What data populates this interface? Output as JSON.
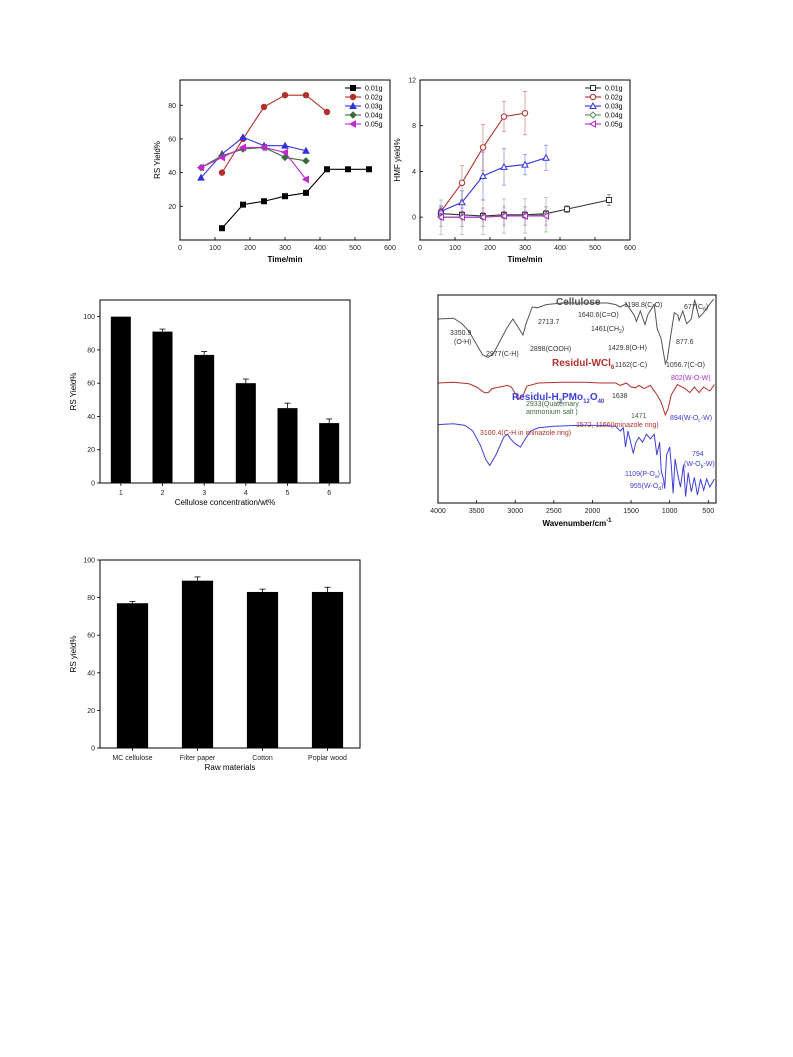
{
  "charts": [
    {
      "id": "rs-time",
      "type": "line",
      "xlabel": "Time/min",
      "ylabel": "RS Yield%",
      "xlim": [
        0,
        600
      ],
      "ylim": [
        0,
        95
      ],
      "xticks": [
        0,
        100,
        200,
        300,
        400,
        500,
        600
      ],
      "yticks": [
        20,
        40,
        60,
        80
      ],
      "legend": "top-right",
      "series": [
        {
          "name": "0.01g",
          "color": "#000000",
          "marker": "square-filled",
          "x": [
            120,
            180,
            240,
            300,
            360,
            420,
            480,
            540
          ],
          "y": [
            7,
            21,
            23,
            26,
            28,
            42,
            42,
            42
          ]
        },
        {
          "name": "0.02g",
          "color": "#b2302a",
          "marker": "circle-filled",
          "x": [
            120,
            180,
            240,
            300,
            360,
            420
          ],
          "y": [
            40,
            60,
            79,
            86,
            86,
            76
          ]
        },
        {
          "name": "0.03g",
          "color": "#3232d8",
          "marker": "triangle-filled",
          "x": [
            60,
            120,
            180,
            240,
            300,
            360
          ],
          "y": [
            37,
            51,
            61,
            56,
            56,
            53
          ]
        },
        {
          "name": "0.04g",
          "color": "#3b6b3b",
          "marker": "diamond-filled",
          "x": [
            60,
            120,
            180,
            240,
            300,
            360
          ],
          "y": [
            43,
            50,
            54,
            55,
            49,
            47
          ]
        },
        {
          "name": "0.05g",
          "color": "#c12ad0",
          "marker": "triangle-left-filled",
          "x": [
            60,
            120,
            180,
            240,
            300,
            360
          ],
          "y": [
            43,
            49,
            55,
            55,
            52,
            36
          ]
        }
      ]
    },
    {
      "id": "hmf-time",
      "type": "line",
      "xlabel": "Time/min",
      "ylabel": "HMF yield%",
      "xlim": [
        0,
        600
      ],
      "ylim": [
        -2,
        12
      ],
      "xticks": [
        0,
        100,
        200,
        300,
        400,
        500,
        600
      ],
      "yticks": [
        0,
        4,
        8,
        12
      ],
      "legend": "top-right",
      "series": [
        {
          "name": "0.01g",
          "color": "#333333",
          "marker": "square-open",
          "x": [
            60,
            120,
            180,
            240,
            300,
            360,
            420,
            540
          ],
          "y": [
            0.3,
            0.2,
            0.1,
            0.2,
            0.2,
            0.3,
            0.7,
            1.5
          ],
          "err": [
            0.3,
            0.3,
            0.3,
            0.3,
            0.3,
            0.3,
            0.3,
            0.5
          ]
        },
        {
          "name": "0.02g",
          "color": "#b2302a",
          "marker": "circle-open",
          "x": [
            60,
            120,
            180,
            240,
            300
          ],
          "y": [
            0.5,
            3.0,
            6.1,
            8.8,
            9.1
          ],
          "err": [
            0.5,
            1.5,
            2.0,
            1.3,
            1.9
          ]
        },
        {
          "name": "0.03g",
          "color": "#3232d8",
          "marker": "triangle-open",
          "x": [
            60,
            120,
            180,
            240,
            300,
            360
          ],
          "y": [
            0.5,
            1.3,
            3.6,
            4.4,
            4.6,
            5.2
          ],
          "err": [
            0.4,
            1.0,
            2.1,
            1.6,
            0.9,
            1.1
          ]
        },
        {
          "name": "0.04g",
          "color": "#5e8f5e",
          "marker": "diamond-open",
          "x": [
            60,
            120,
            180,
            240,
            300,
            360
          ],
          "y": [
            0.0,
            0.0,
            0.0,
            0.1,
            0.1,
            0.2
          ],
          "err": [
            1.5,
            1.5,
            1.5,
            1.5,
            1.5,
            1.5
          ]
        },
        {
          "name": "0.05g",
          "color": "#b12ec6",
          "marker": "triangle-left-open",
          "x": [
            60,
            120,
            180,
            240,
            300,
            360
          ],
          "y": [
            0.0,
            0.0,
            0.0,
            0.1,
            0.1,
            0.1
          ],
          "err": [
            0.8,
            0.8,
            0.8,
            0.8,
            0.8,
            0.8
          ]
        }
      ]
    },
    {
      "id": "rs-concentration",
      "type": "bar",
      "xlabel": "Cellulose concentration/wt%",
      "ylabel": "RS Yield%",
      "ylim": [
        0,
        110
      ],
      "yticks": [
        0,
        20,
        40,
        60,
        80,
        100
      ],
      "categories": [
        "1",
        "2",
        "3",
        "4",
        "5",
        "6"
      ],
      "values": [
        100,
        91,
        77,
        60,
        45,
        36
      ],
      "errors": [
        0,
        1.5,
        2,
        2.5,
        3,
        2.5
      ]
    },
    {
      "id": "ftir",
      "type": "line",
      "xlabel": "Wavenumber/cm",
      "xlabel_sup": "-1",
      "xlim": [
        4000,
        400
      ],
      "xticks": [
        4000,
        3500,
        3000,
        2500,
        2000,
        1500,
        1000,
        500
      ],
      "series": [
        {
          "name": "Cellulose",
          "color": "#555555",
          "points": [
            [
              4000,
              0.3
            ],
            [
              3800,
              0.29
            ],
            [
              3700,
              0.35
            ],
            [
              3600,
              0.45
            ],
            [
              3500,
              0.62
            ],
            [
              3420,
              0.75
            ],
            [
              3350,
              0.78
            ],
            [
              3280,
              0.73
            ],
            [
              3200,
              0.58
            ],
            [
              3100,
              0.4
            ],
            [
              3030,
              0.3
            ],
            [
              2977,
              0.38
            ],
            [
              2900,
              0.5
            ],
            [
              2860,
              0.36
            ],
            [
              2780,
              0.15
            ],
            [
              2713,
              0.16
            ],
            [
              2600,
              0.12
            ],
            [
              2400,
              0.1
            ],
            [
              2200,
              0.1
            ],
            [
              2000,
              0.1
            ],
            [
              1800,
              0.1
            ],
            [
              1700,
              0.12
            ],
            [
              1640,
              0.15
            ],
            [
              1560,
              0.11
            ],
            [
              1461,
              0.25
            ],
            [
              1430,
              0.33
            ],
            [
              1380,
              0.2
            ],
            [
              1320,
              0.37
            ],
            [
              1280,
              0.24
            ],
            [
              1200,
              0.12
            ],
            [
              1162,
              0.42
            ],
            [
              1110,
              0.55
            ],
            [
              1056,
              0.86
            ],
            [
              1030,
              0.8
            ],
            [
              985,
              0.5
            ],
            [
              940,
              0.22
            ],
            [
              895,
              0.25
            ],
            [
              877,
              0.32
            ],
            [
              830,
              0.2
            ],
            [
              780,
              0.36
            ],
            [
              720,
              0.3
            ],
            [
              677,
              0.06
            ],
            [
              620,
              0.28
            ],
            [
              560,
              0.22
            ],
            [
              500,
              0.14
            ],
            [
              430,
              0.05
            ]
          ]
        },
        {
          "name": "Residul-WCl6",
          "color": "#b2302a",
          "points": [
            [
              4000,
              1.1
            ],
            [
              3800,
              1.09
            ],
            [
              3600,
              1.11
            ],
            [
              3500,
              1.15
            ],
            [
              3400,
              1.22
            ],
            [
              3350,
              1.22
            ],
            [
              3300,
              1.17
            ],
            [
              3100,
              1.13
            ],
            [
              3050,
              1.15
            ],
            [
              3000,
              1.23
            ],
            [
              2950,
              1.3
            ],
            [
              2900,
              1.26
            ],
            [
              2850,
              1.14
            ],
            [
              2700,
              1.1
            ],
            [
              2400,
              1.09
            ],
            [
              2100,
              1.09
            ],
            [
              1900,
              1.1
            ],
            [
              1700,
              1.1
            ],
            [
              1640,
              1.13
            ],
            [
              1560,
              1.1
            ],
            [
              1500,
              1.15
            ],
            [
              1440,
              1.16
            ],
            [
              1400,
              1.13
            ],
            [
              1330,
              1.17
            ],
            [
              1250,
              1.13
            ],
            [
              1162,
              1.25
            ],
            [
              1110,
              1.34
            ],
            [
              1056,
              1.5
            ],
            [
              1020,
              1.42
            ],
            [
              980,
              1.25
            ],
            [
              900,
              1.12
            ],
            [
              802,
              1.17
            ],
            [
              740,
              1.22
            ],
            [
              680,
              1.15
            ],
            [
              620,
              1.22
            ],
            [
              560,
              1.15
            ],
            [
              480,
              1.2
            ],
            [
              420,
              1.12
            ]
          ]
        },
        {
          "name": "Residul-H3PMo12O40",
          "color": "#4040d8",
          "points": [
            [
              4000,
              1.62
            ],
            [
              3800,
              1.61
            ],
            [
              3650,
              1.63
            ],
            [
              3550,
              1.7
            ],
            [
              3450,
              1.88
            ],
            [
              3380,
              2.06
            ],
            [
              3330,
              2.13
            ],
            [
              3250,
              2.0
            ],
            [
              3150,
              1.78
            ],
            [
              3100,
              1.74
            ],
            [
              3060,
              1.8
            ],
            [
              3000,
              1.86
            ],
            [
              2933,
              1.9
            ],
            [
              2870,
              1.8
            ],
            [
              2800,
              1.7
            ],
            [
              2700,
              1.66
            ],
            [
              2500,
              1.64
            ],
            [
              2200,
              1.63
            ],
            [
              1900,
              1.63
            ],
            [
              1700,
              1.64
            ],
            [
              1638,
              1.7
            ],
            [
              1600,
              1.66
            ],
            [
              1572,
              1.9
            ],
            [
              1540,
              1.7
            ],
            [
              1471,
              1.98
            ],
            [
              1440,
              1.85
            ],
            [
              1400,
              1.78
            ],
            [
              1350,
              1.84
            ],
            [
              1300,
              1.74
            ],
            [
              1250,
              1.8
            ],
            [
              1200,
              1.74
            ],
            [
              1166,
              2.0
            ],
            [
              1130,
              1.84
            ],
            [
              1109,
              2.2
            ],
            [
              1080,
              2.3
            ],
            [
              1064,
              2.42
            ],
            [
              1040,
              2.0
            ],
            [
              1000,
              1.9
            ],
            [
              980,
              2.12
            ],
            [
              955,
              2.48
            ],
            [
              930,
              2.05
            ],
            [
              894,
              2.25
            ],
            [
              860,
              2.4
            ],
            [
              820,
              2.12
            ],
            [
              794,
              2.52
            ],
            [
              760,
              2.22
            ],
            [
              720,
              2.46
            ],
            [
              680,
              2.28
            ],
            [
              640,
              2.5
            ],
            [
              600,
              2.3
            ],
            [
              560,
              2.44
            ],
            [
              520,
              2.3
            ],
            [
              480,
              2.4
            ],
            [
              420,
              2.3
            ]
          ]
        }
      ]
    },
    {
      "id": "rs-raw-materials",
      "type": "bar",
      "xlabel": "Raw materials",
      "ylabel": "RS yield%",
      "ylim": [
        0,
        100
      ],
      "yticks": [
        0,
        20,
        40,
        60,
        80,
        100
      ],
      "categories": [
        "MC cellulose",
        "Filter paper",
        "Cotton",
        "Poplar wood"
      ],
      "values": [
        77,
        89,
        83,
        83
      ],
      "errors": [
        1,
        2,
        1.5,
        2.5
      ]
    }
  ],
  "ftir_labels": {
    "title_cellulose": "Cellulose",
    "title_wcl": "Residul-WCl",
    "title_wcl_sub": "6",
    "title_hpm_a": "Residul-H",
    "title_hpm_sub1": "3",
    "title_hpm_b": "PMo",
    "title_hpm_sub2": "12",
    "title_hpm_c": "O",
    "title_hpm_sub3": "40",
    "a_3350": "3350.9",
    "a_oh": "(O-H)",
    "a_2977": "2977(C-H)",
    "a_2713": "2713.7",
    "a_2898": "2898(COOH)",
    "a_1640": "1640.6(C=O)",
    "a_1198": "1198.8(C-O)",
    "a_1461": "1461(CH",
    "a_1461_sub": "2",
    "a_1461_end": ")",
    "a_677": "677(C",
    "a_677_sub": "6",
    "a_677_end": ")",
    "a_1429": "1429.8(O-H)",
    "a_877": "877.6",
    "a_1162": "1162(C-C)",
    "a_1056": "1056.7(C-O)",
    "a_802": "802(W-O-W)",
    "a_1638": "1638",
    "a_2933a": "2933(Quaternary",
    "a_2933b": "ammonium salt )",
    "a_1471": "1471",
    "a_1572": "1572, 1166(Iminazole ring)",
    "a_3100": "3100.4(C-H in iminazole ring)",
    "a_894": "894(W-O",
    "a_894_sub": "c",
    "a_894_end": "-W)",
    "a_794": "794",
    "a_794b": "(W-O",
    "a_794b_sub": "b",
    "a_794b_end": "-W)",
    "a_1109": "1109(P-O",
    "a_1109_sub": "a",
    "a_1109_end": ")",
    "a_955": "955(W-O",
    "a_955_sub": "d",
    "a_955_end": ")"
  }
}
